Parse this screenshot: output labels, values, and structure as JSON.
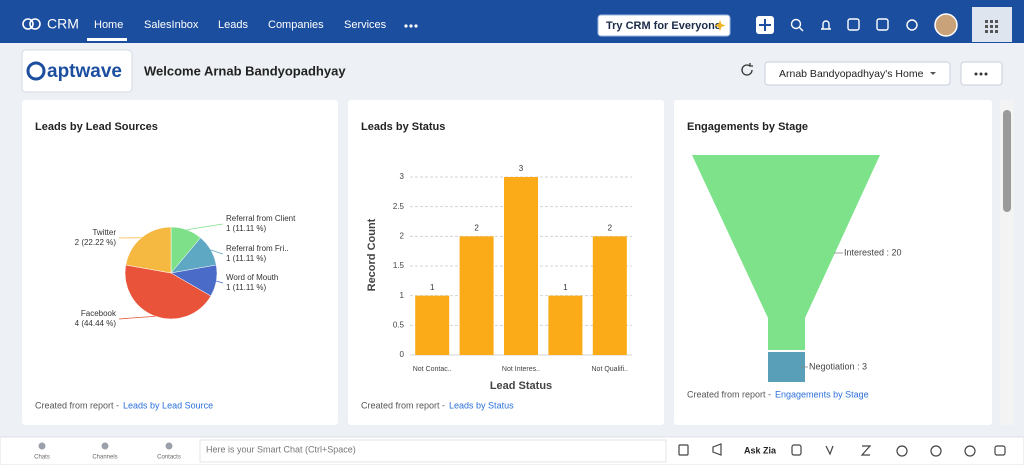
{
  "nav": {
    "brand": "CRM",
    "tabs": [
      "Home",
      "SalesInbox",
      "Leads",
      "Companies",
      "Services"
    ],
    "cta": "Try CRM for Everyone"
  },
  "header": {
    "logo": "aptwave",
    "welcome": "Welcome Arnab Bandyopadhyay",
    "home_view": "Arnab Bandyopadhyay's Home"
  },
  "chart_data": [
    {
      "type": "pie",
      "title": "Leads by Lead Sources",
      "categories": [
        "Referral from Client",
        "Referral from Fri..",
        "Word of Mouth",
        "Facebook",
        "Twitter"
      ],
      "values": [
        1,
        1,
        1,
        4,
        2
      ],
      "value_labels": [
        "1 (11.11 %)",
        "1 (11.11 %)",
        "1 (11.11 %)",
        "4 (44.44 %)",
        "2 (22.22 %)"
      ],
      "colors": [
        "#7fe08a",
        "#5fa8c4",
        "#4a6bc8",
        "#e8533a",
        "#f5b941"
      ],
      "footer": "Created from report -",
      "report_link": "Leads by Lead Source"
    },
    {
      "type": "bar",
      "title": "Leads by Status",
      "categories": [
        "Not Contac..",
        null,
        "Not Interes..",
        null,
        "Not Qualifi.."
      ],
      "values": [
        1,
        2,
        3,
        1,
        2
      ],
      "color": "#fbab18",
      "ylim": [
        0,
        3
      ],
      "yticks": [
        0,
        0.5,
        1,
        1.5,
        2,
        2.5,
        3
      ],
      "grid": true,
      "xlabel": "Lead Status",
      "ylabel": "Record Count",
      "footer": "Created from report -",
      "report_link": "Leads by Status"
    },
    {
      "type": "funnel",
      "title": "Engagements by Stage",
      "values": [
        20,
        3
      ],
      "value_labels": [
        "Interested : 20",
        "Negotiation : 3"
      ],
      "colors": [
        "#7ee28a",
        "#5a9fb8"
      ],
      "footer": "Created from report -",
      "report_link": "Engagements by Stage"
    }
  ],
  "bottom_bar": {
    "shortcuts": [
      "Chats",
      "Channels",
      "Contacts"
    ],
    "chat_placeholder": "Here is your Smart Chat (Ctrl+Space)",
    "zia": "Ask Zia"
  }
}
